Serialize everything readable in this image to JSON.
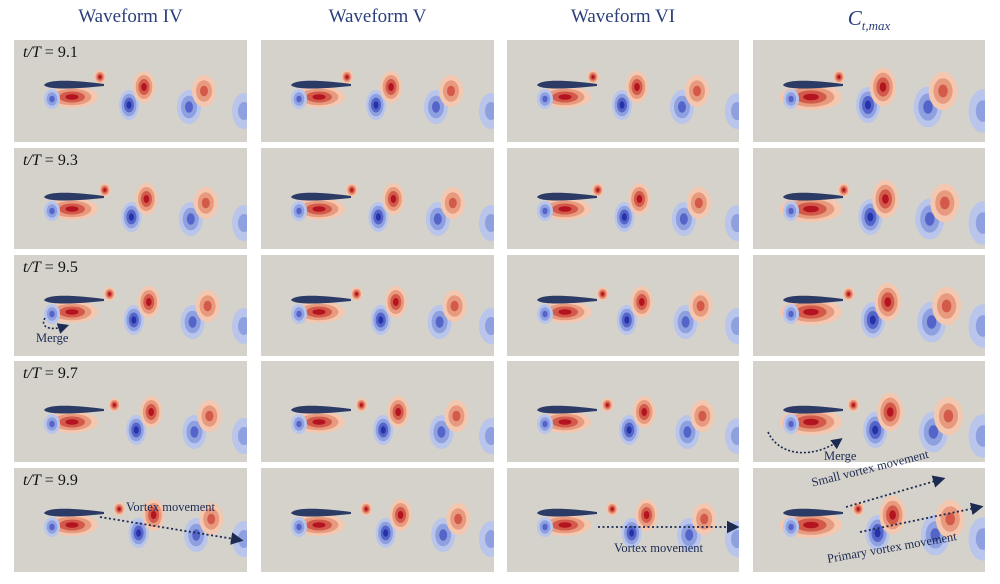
{
  "columns": [
    {
      "label": "Waveform IV"
    },
    {
      "label": "Waveform V"
    },
    {
      "label": "Waveform VI"
    },
    {
      "label_main": "C",
      "label_sub": "t,max"
    }
  ],
  "rows": [
    {
      "time_prefix": "t/T",
      "time_value": "= 9.1"
    },
    {
      "time_prefix": "t/T",
      "time_value": "= 9.3"
    },
    {
      "time_prefix": "t/T",
      "time_value": "= 9.5"
    },
    {
      "time_prefix": "t/T",
      "time_value": "= 9.7"
    },
    {
      "time_prefix": "t/T",
      "time_value": "= 9.9"
    }
  ],
  "annotations": {
    "merge_1": "Merge",
    "merge_2": "Merge",
    "vortex_movement_1": "Vortex movement",
    "vortex_movement_2": "Vortex movement",
    "small_vortex_movement": "Small vortex movement",
    "primary_vortex_movement": "Primary vortex movement"
  },
  "colors": {
    "background": "#d4d2cb",
    "positive_vorticity": "#b3141f",
    "negative_vorticity": "#2632a8",
    "airfoil": "#2c3a66",
    "arrow": "#1d2b52"
  }
}
